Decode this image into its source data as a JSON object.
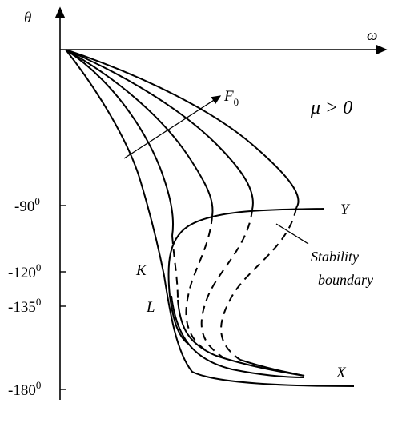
{
  "axes": {
    "y_label": "θ",
    "x_label": "ω"
  },
  "ticks": [
    {
      "text": "-90",
      "sup": "0"
    },
    {
      "text": "-120",
      "sup": "0"
    },
    {
      "text": "-135",
      "sup": "0"
    },
    {
      "text": "-180",
      "sup": "0"
    }
  ],
  "annotations": {
    "force": {
      "text": "F",
      "sub": "0"
    },
    "condition": "μ > 0",
    "curve_y": "Y",
    "curve_x": "X",
    "point_k": "K",
    "point_l": "L",
    "stability_1": "Stability",
    "stability_2": "boundary"
  }
}
